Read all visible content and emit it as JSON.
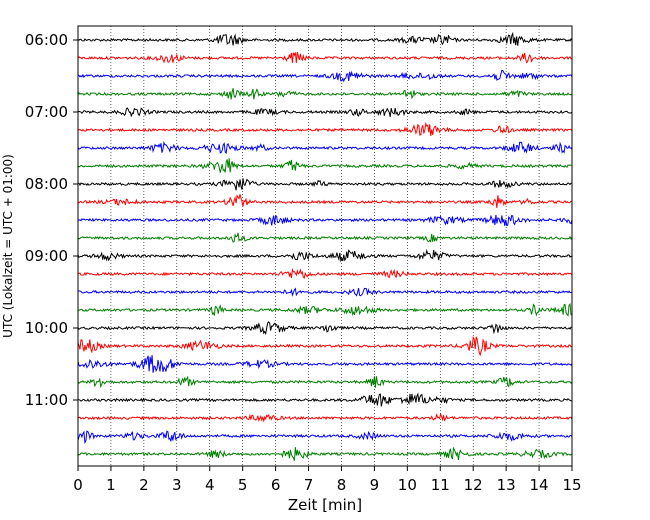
{
  "chart_data": {
    "type": "line",
    "title": "",
    "xlabel": "Zeit  [min]",
    "ylabel": "UTC (Lokalzeit = UTC + 01:00)",
    "xlim": [
      0,
      15
    ],
    "x_ticks": [
      "0",
      "1",
      "2",
      "3",
      "4",
      "5",
      "6",
      "7",
      "8",
      "9",
      "10",
      "11",
      "12",
      "13",
      "14",
      "15"
    ],
    "y_tick_labels": [
      "06:00",
      "07:00",
      "08:00",
      "09:00",
      "10:00",
      "11:00"
    ],
    "grid": "vertical dotted at each minute",
    "trace_start_time": "06:00",
    "trace_interval_min": 15,
    "trace_count": 24,
    "trace_colors": [
      "#000000",
      "#ff0000",
      "#0000ff",
      "#008000"
    ]
  }
}
